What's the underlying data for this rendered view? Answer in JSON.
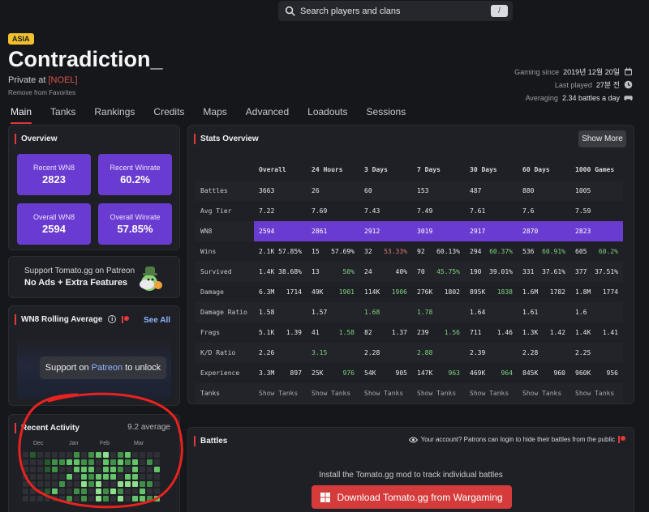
{
  "search": {
    "placeholder": "Search players and clans",
    "shortcut": "/"
  },
  "player": {
    "region": "ASIA",
    "name": "Contradiction_",
    "rank_prefix": "Private at",
    "clan": "[NOEL]",
    "favorites_link": "Remove from Favorites"
  },
  "meta": {
    "gaming_since_label": "Gaming since",
    "gaming_since": "2019년 12월 20일",
    "last_played_label": "Last played",
    "last_played": "27분 전",
    "averaging_label": "Averaging",
    "averaging": "2.34 battles a day"
  },
  "tabs": [
    "Main",
    "Tanks",
    "Rankings",
    "Credits",
    "Maps",
    "Advanced",
    "Loadouts",
    "Sessions"
  ],
  "overview": {
    "title": "Overview",
    "tiles": [
      {
        "label": "Recent WN8",
        "value": "2823"
      },
      {
        "label": "Recent Winrate",
        "value": "60.2%"
      },
      {
        "label": "Overall WN8",
        "value": "2594"
      },
      {
        "label": "Overall Winrate",
        "value": "57.85%"
      }
    ]
  },
  "patreon": {
    "line1": "Support Tomato.gg on Patreon",
    "line2": "No Ads + Extra Features"
  },
  "rolling": {
    "title": "WN8 Rolling Average",
    "see_all": "See All",
    "unlock_pre": "Support on",
    "unlock_link": "Patreon",
    "unlock_post": "to unlock"
  },
  "activity": {
    "title": "Recent Activity",
    "average": "9.2 average",
    "months": [
      "Dec",
      "Jan",
      "Feb",
      "Mar"
    ]
  },
  "stats": {
    "title": "Stats Overview",
    "show_more": "Show More",
    "columns": [
      "Overall",
      "24 Hours",
      "3 Days",
      "7 Days",
      "30 Days",
      "60 Days",
      "1000 Games"
    ],
    "rows": {
      "battles": {
        "label": "Battles",
        "cells": [
          "3663",
          "26",
          "60",
          "153",
          "487",
          "880",
          "1005"
        ]
      },
      "avg_tier": {
        "label": "Avg Tier",
        "cells": [
          "7.22",
          "7.69",
          "7.43",
          "7.49",
          "7.61",
          "7.6",
          "7.59"
        ]
      },
      "wn8": {
        "label": "WN8",
        "cells": [
          "2594",
          "2861",
          "2912",
          "3019",
          "2917",
          "2870",
          "2823"
        ]
      },
      "wins": {
        "label": "Wins",
        "a": [
          "2.1K",
          "15",
          "32",
          "92",
          "294",
          "536",
          "605"
        ],
        "b": [
          "57.85%",
          "57.69%",
          "53.33%",
          "60.13%",
          "60.37%",
          "60.91%",
          "60.2%"
        ]
      },
      "survived": {
        "label": "Survived",
        "a": [
          "1.4K",
          "13",
          "24",
          "70",
          "190",
          "331",
          "377"
        ],
        "b": [
          "38.68%",
          "50%",
          "40%",
          "45.75%",
          "39.01%",
          "37.61%",
          "37.51%"
        ]
      },
      "damage": {
        "label": "Damage",
        "a": [
          "6.3M",
          "49K",
          "114K",
          "276K",
          "895K",
          "1.6M",
          "1.8M"
        ],
        "b": [
          "1714",
          "1901",
          "1906",
          "1802",
          "1838",
          "1782",
          "1774"
        ]
      },
      "damage_ratio": {
        "label": "Damage Ratio",
        "cells": [
          "1.58",
          "1.57",
          "1.68",
          "1.78",
          "1.64",
          "1.61",
          "1.6"
        ]
      },
      "frags": {
        "label": "Frags",
        "a": [
          "5.1K",
          "41",
          "82",
          "239",
          "711",
          "1.3K",
          "1.4K"
        ],
        "b": [
          "1.39",
          "1.58",
          "1.37",
          "1.56",
          "1.46",
          "1.42",
          "1.41"
        ]
      },
      "kd_ratio": {
        "label": "K/D Ratio",
        "cells": [
          "2.26",
          "3.15",
          "2.28",
          "2.88",
          "2.39",
          "2.28",
          "2.25"
        ]
      },
      "experience": {
        "label": "Experience",
        "a": [
          "3.3M",
          "25K",
          "54K",
          "147K",
          "469K",
          "845K",
          "960K"
        ],
        "b": [
          "897",
          "976",
          "905",
          "963",
          "964",
          "960",
          "956"
        ]
      },
      "tanks": {
        "label": "Tanks",
        "link": "Show Tanks"
      }
    }
  },
  "battles": {
    "title": "Battles",
    "hint": "Your account? Patrons can login to hide their battles from the public",
    "install": "Install the Tomato.gg mod to track individual battles",
    "download": "Download Tomato.gg from Wargaming"
  },
  "colors": {
    "accent_red": "#e23a3a",
    "purple_tile": "#6a3bd1",
    "good_green": "#7cd37c",
    "bad_red": "#e07a7a",
    "clan_red": "#d9534f",
    "region_badge": "#f0c12c"
  }
}
